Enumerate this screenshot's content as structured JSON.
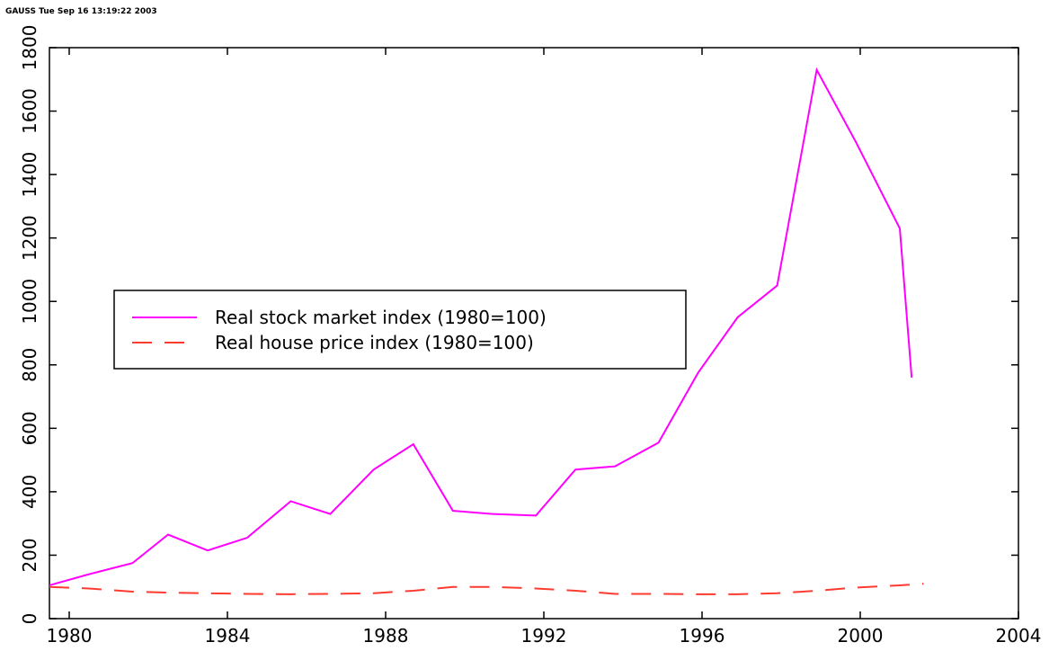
{
  "header": "GAUSS    Tue Sep 16 13:19:22 2003",
  "chart_data": {
    "type": "line",
    "xlim": [
      1979.5,
      2004
    ],
    "xticks": [
      1980,
      1984,
      1988,
      1992,
      1996,
      2000,
      2004
    ],
    "ylim": [
      0,
      1800
    ],
    "yticks": [
      0,
      200,
      400,
      600,
      800,
      1000,
      1200,
      1400,
      1600,
      1800
    ],
    "legend": "center-left",
    "series": [
      {
        "name": "Real stock market index (1980=100)",
        "color": "#ff00ff",
        "dash": "solid",
        "x": [
          1979.5,
          1980.5,
          1981.6,
          1982.5,
          1983.5,
          1984.5,
          1985.6,
          1986.6,
          1987.7,
          1988.7,
          1989.7,
          1990.7,
          1991.8,
          1992.8,
          1993.8,
          1994.9,
          1995.9,
          1996.9,
          1997.9,
          1998.9,
          1999.9,
          2001.0,
          2001.3
        ],
        "values": [
          105,
          140,
          175,
          265,
          215,
          255,
          370,
          330,
          470,
          550,
          340,
          330,
          325,
          470,
          480,
          555,
          775,
          950,
          1050,
          1730,
          1500,
          1230,
          760
        ]
      },
      {
        "name": "Real house price index (1980=100)",
        "color": "#ff3b30",
        "dash": "dashed",
        "x": [
          1979.5,
          1980.5,
          1981.6,
          1982.5,
          1983.5,
          1984.5,
          1985.6,
          1986.6,
          1987.7,
          1988.7,
          1989.7,
          1990.7,
          1991.8,
          1992.8,
          1993.8,
          1994.9,
          1995.9,
          1996.9,
          1997.9,
          1998.9,
          1999.9,
          2001.0,
          2001.6
        ],
        "values": [
          100,
          95,
          85,
          82,
          80,
          78,
          77,
          78,
          80,
          88,
          100,
          100,
          95,
          88,
          78,
          78,
          77,
          77,
          80,
          88,
          98,
          105,
          110
        ]
      }
    ]
  }
}
